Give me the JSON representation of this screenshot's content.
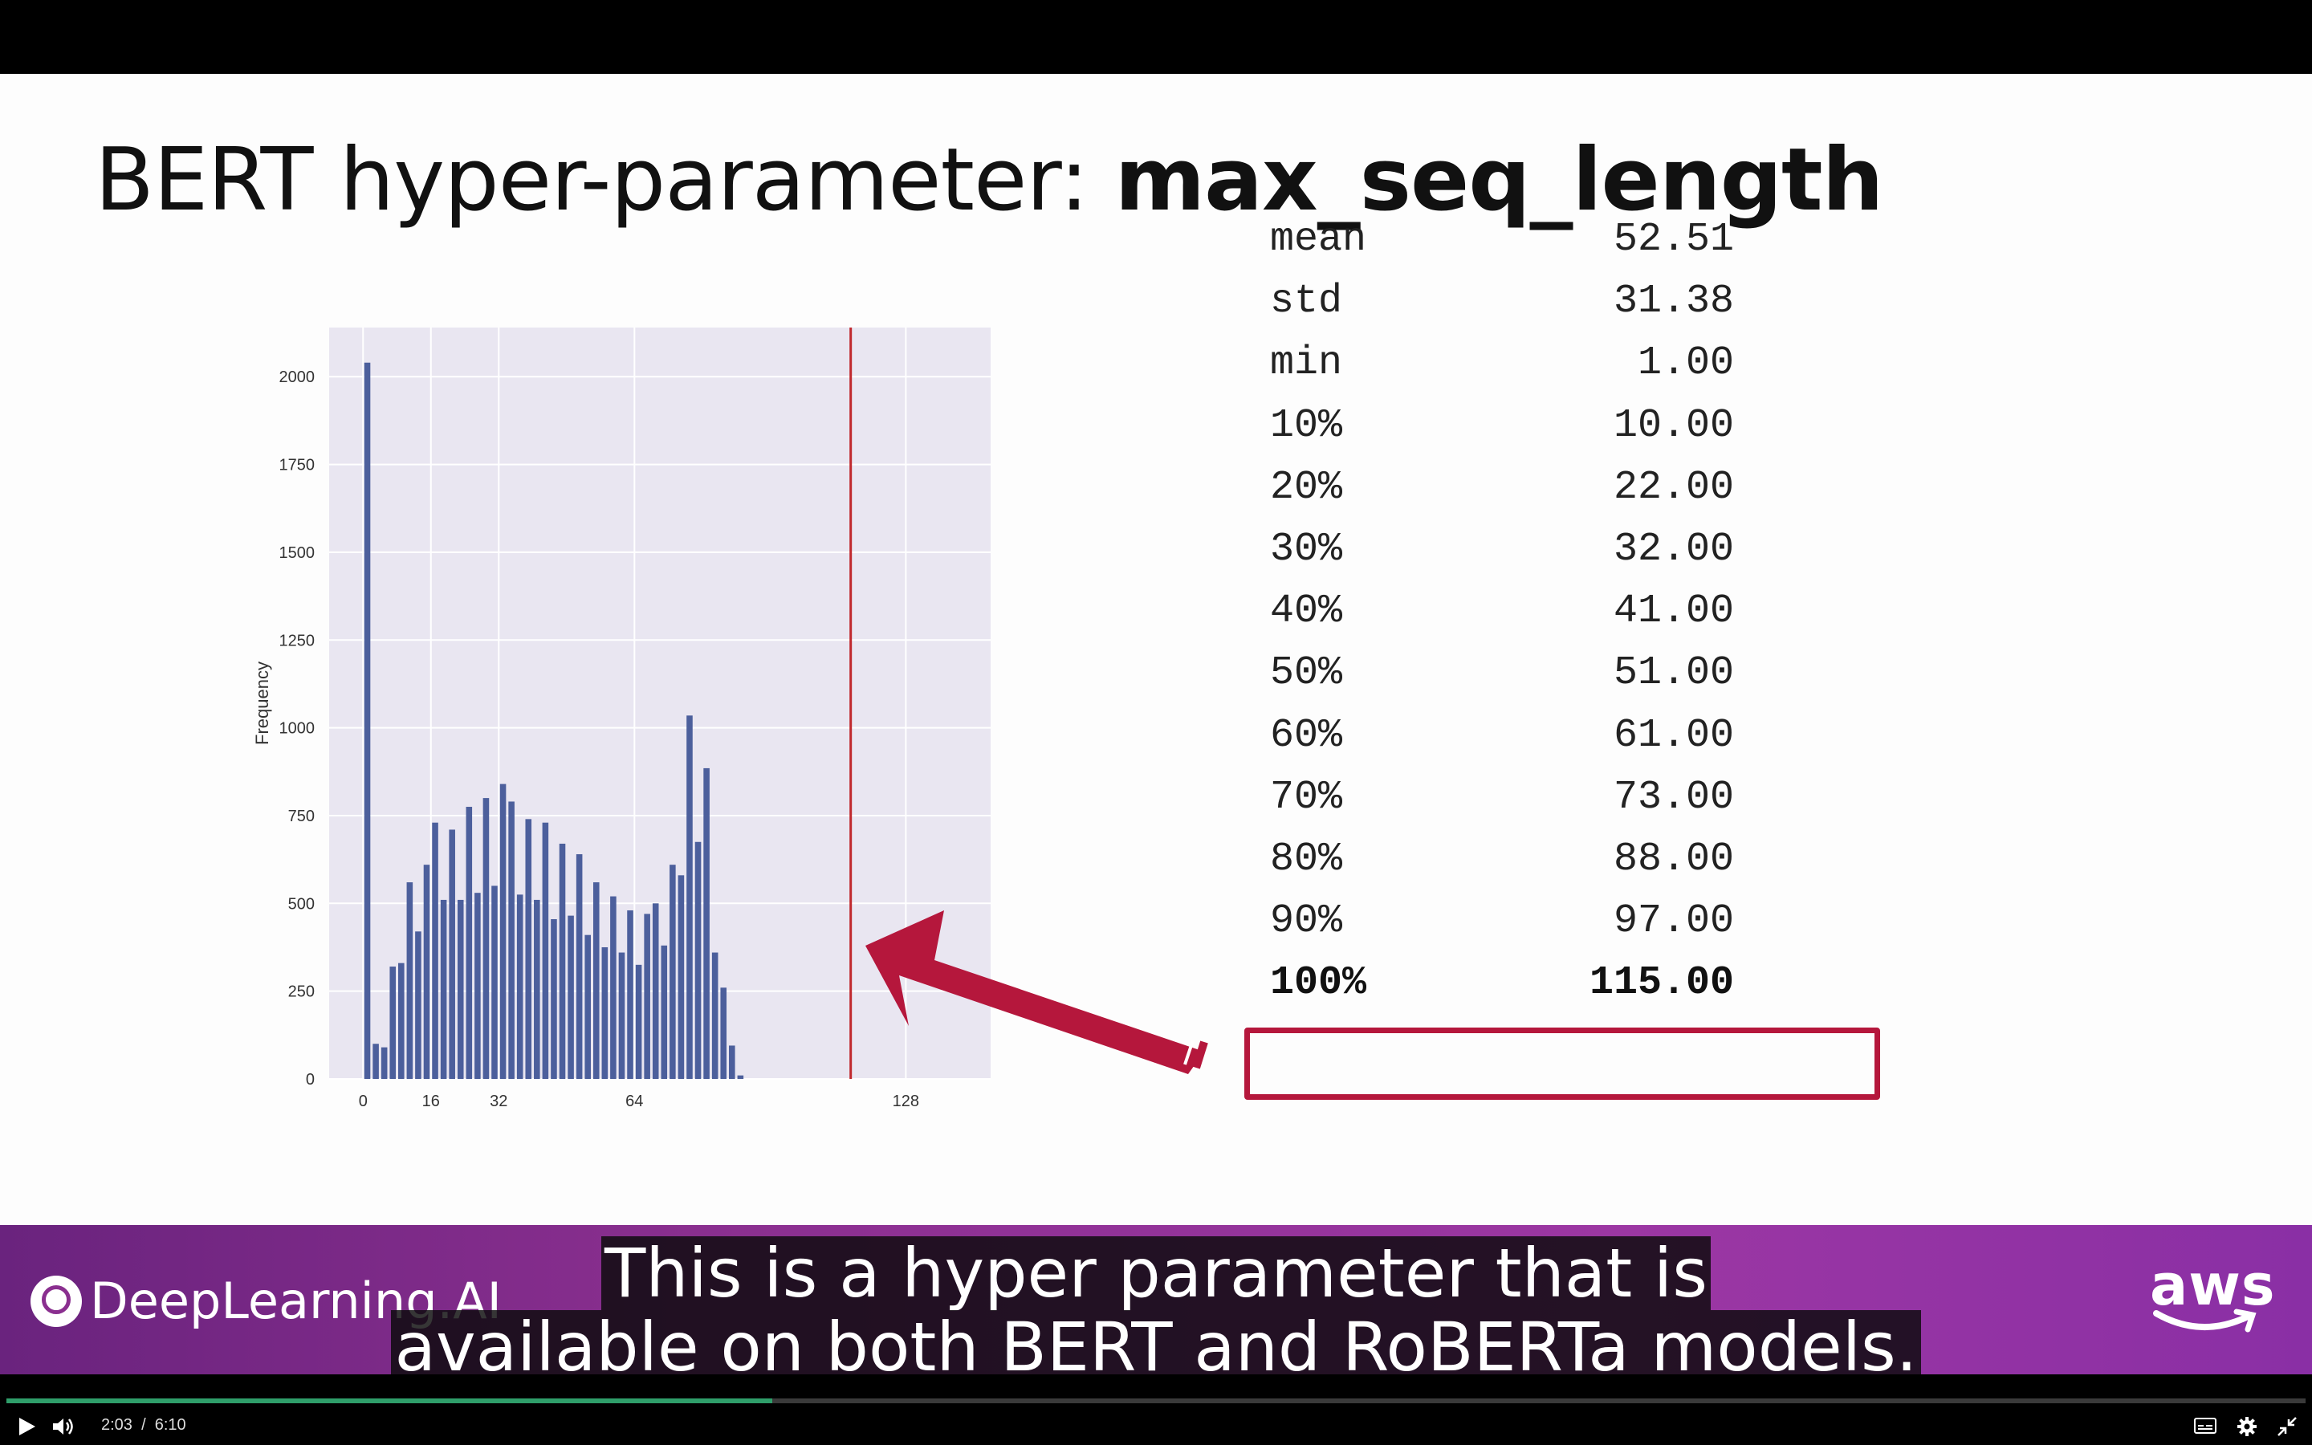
{
  "slide": {
    "title_regular": "BERT hyper-parameter: ",
    "title_bold": "max_seq_length"
  },
  "chart_data": {
    "type": "bar",
    "ylabel": "Frequency",
    "xticks": [
      "0",
      "16",
      "32",
      "64",
      "128"
    ],
    "yticks": [
      "0",
      "250",
      "500",
      "750",
      "1000",
      "1250",
      "1500",
      "1750",
      "2000"
    ],
    "xlim": [
      -8,
      148
    ],
    "ylim": [
      0,
      2140
    ],
    "grid": true,
    "bin_width": 2,
    "x": [
      1,
      3,
      5,
      7,
      9,
      11,
      13,
      15,
      17,
      19,
      21,
      23,
      25,
      27,
      29,
      31,
      33,
      35,
      37,
      39,
      41,
      43,
      45,
      47,
      49,
      51,
      53,
      55,
      57,
      59,
      61,
      63,
      65,
      67,
      69,
      71,
      73,
      75,
      77,
      79,
      81,
      83,
      85,
      87,
      89,
      91,
      93,
      95,
      97,
      99,
      101,
      103,
      105,
      107,
      109,
      111,
      113
    ],
    "values": [
      2040,
      100,
      90,
      320,
      330,
      560,
      420,
      610,
      730,
      510,
      710,
      510,
      775,
      530,
      800,
      550,
      840,
      790,
      525,
      740,
      510,
      730,
      455,
      670,
      465,
      640,
      410,
      560,
      375,
      520,
      360,
      480,
      325,
      470,
      500,
      380,
      610,
      580,
      1035,
      675,
      885,
      360,
      260,
      95,
      10,
      0,
      0,
      0,
      0,
      0,
      0,
      0,
      0,
      0,
      0,
      0,
      0
    ],
    "vline": 115,
    "bar_color": "#4c5f9c",
    "vline_color": "#c0282d",
    "background": "#e9e6f1"
  },
  "stats": [
    {
      "label": "mean",
      "value": "52.51"
    },
    {
      "label": "std",
      "value": "31.38"
    },
    {
      "label": "min",
      "value": "1.00"
    },
    {
      "label": "10%",
      "value": "10.00"
    },
    {
      "label": "20%",
      "value": "22.00"
    },
    {
      "label": "30%",
      "value": "32.00"
    },
    {
      "label": "40%",
      "value": "41.00"
    },
    {
      "label": "50%",
      "value": "51.00"
    },
    {
      "label": "60%",
      "value": "61.00"
    },
    {
      "label": "70%",
      "value": "73.00"
    },
    {
      "label": "80%",
      "value": "88.00"
    },
    {
      "label": "90%",
      "value": "97.00"
    },
    {
      "label": "100%",
      "value": "115.00"
    }
  ],
  "branding": {
    "logo_text": "DeepLearning.AI",
    "partner": "aws"
  },
  "caption": {
    "line1": "This is a hyper parameter that is",
    "line2": "available on both BERT and RoBERTa models."
  },
  "player": {
    "current_time": "2:03",
    "separator": "/",
    "duration": "6:10",
    "progress": 0.333,
    "accent_color": "#2f9e6a",
    "icons": [
      "play-icon",
      "volume-icon",
      "captions-icon",
      "settings-icon",
      "exit-fullscreen-icon"
    ]
  }
}
